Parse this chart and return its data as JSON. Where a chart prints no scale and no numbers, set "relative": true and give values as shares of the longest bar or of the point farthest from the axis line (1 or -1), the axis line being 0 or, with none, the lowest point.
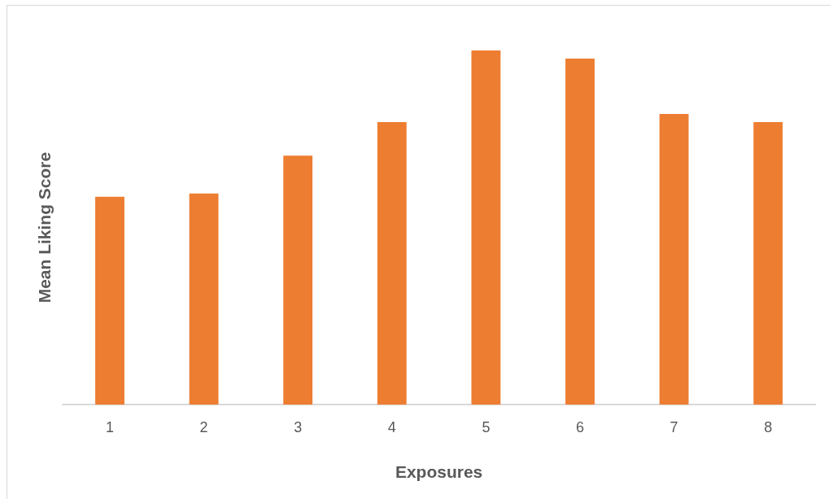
{
  "chart_data": {
    "type": "bar",
    "relative": true,
    "xlabel": "Exposures",
    "ylabel": "Mean Liking Score",
    "categories": [
      "1",
      "2",
      "3",
      "4",
      "5",
      "6",
      "7",
      "8"
    ],
    "values": [
      0.587,
      0.596,
      0.703,
      0.798,
      1,
      0.977,
      0.821,
      0.798
    ],
    "color": "#ed7d31",
    "grid": false,
    "legend": false
  }
}
